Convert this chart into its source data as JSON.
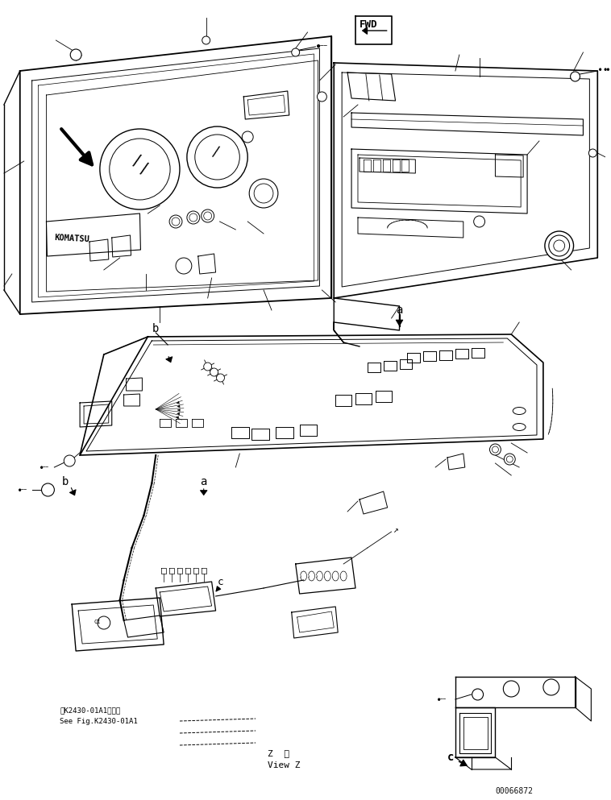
{
  "bg_color": "#ffffff",
  "line_color": "#000000",
  "figure_width": 7.58,
  "figure_height": 9.93,
  "dpi": 100,
  "doc_number": "00066872",
  "view_label_jp": "Z  視",
  "view_label_en": "View Z",
  "see_fig_jp": "第K2430-01A1図参照",
  "see_fig_en": "See Fig.K2430-01A1",
  "label_a": "a",
  "label_b": "b",
  "label_c": "c",
  "fwd_label": "FWD"
}
